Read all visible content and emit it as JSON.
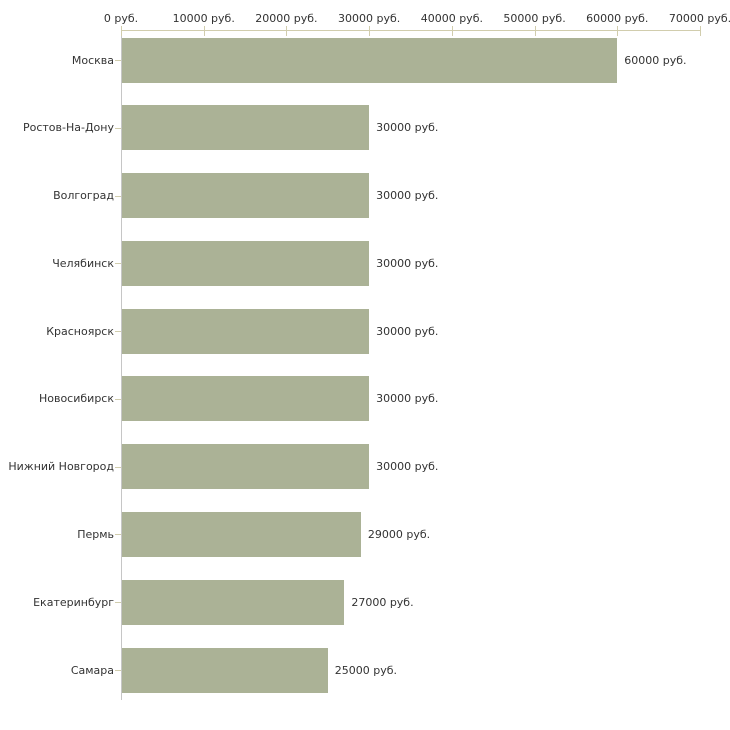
{
  "chart_data": {
    "type": "bar",
    "orientation": "horizontal",
    "title": "",
    "categories": [
      "Москва",
      "Ростов-На-Дону",
      "Волгоград",
      "Челябинск",
      "Красноярск",
      "Новосибирск",
      "Нижний Новгород",
      "Пермь",
      "Екатеринбург",
      "Самара"
    ],
    "values": [
      60000,
      30000,
      30000,
      30000,
      30000,
      30000,
      30000,
      29000,
      27000,
      25000
    ],
    "value_labels": [
      "60000 руб.",
      "30000 руб.",
      "30000 руб.",
      "30000 руб.",
      "30000 руб.",
      "30000 руб.",
      "30000 руб.",
      "29000 руб.",
      "27000 руб.",
      "25000 руб."
    ],
    "unit": "руб.",
    "x_axis": {
      "position": "top",
      "max": 70000,
      "ticks": [
        0,
        10000,
        20000,
        30000,
        40000,
        50000,
        60000,
        70000
      ],
      "tick_labels": [
        "0 руб.",
        "10000 руб.",
        "20000 руб.",
        "30000 руб.",
        "40000 руб.",
        "50000 руб.",
        "60000 руб.",
        "70000 руб."
      ]
    },
    "layout_hints": {
      "grid": false,
      "legend": false,
      "value_labels_outside_end": true
    },
    "colors": {
      "bar": "#abb296",
      "axis_tick_tan": "#d1cdad",
      "axis_line_gray": "#c6c6c6",
      "text": "#333333",
      "background": "#ffffff"
    }
  }
}
